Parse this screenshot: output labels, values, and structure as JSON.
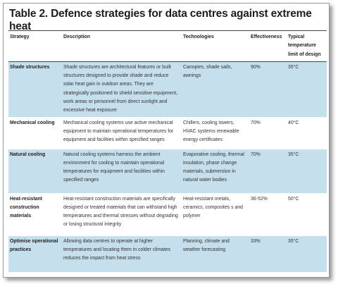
{
  "title": "Table 2. Defence strategies for data centres against extreme heat",
  "table": {
    "headers": [
      "Strategy",
      "Description",
      "Technologies",
      "Effectiveness",
      "Typical temperature limit of design"
    ],
    "rows": [
      [
        "Shade structures",
        "Shade structures are architectural features or built structures designed to provide shade and reduce solar heat gain in outdoor areas. They are strategically positioned to shield sensitive equipment, work areas or personnel from direct sunlight and excessive heat exposure",
        "Canopies, shade sails, awnings",
        "90%",
        "35°C"
      ],
      [
        "Mechanical cooling",
        "Mechanical cooling systems use active mechanical equipment to maintain operational temperatures for equipment and facilities within specified ranges",
        "Chillers, cooling towers, HVAC systems renewable energy certificates",
        "70%",
        "40°C"
      ],
      [
        "Natural cooling",
        "Natural cooling systems harness the ambient environment for cooling to maintain operational temperatures for equipment and facilities within specified ranges",
        "Evaporative cooling, thermal insulation, phase change materials, submersion in natural water bodies",
        "70%",
        "35°C"
      ],
      [
        "Heat-resistant construction materials",
        "Heat-resistant construction materials are specifically designed or treated materials that can withstand high temperatures and thermal stresses without degrading or losing structural integrity",
        "Heat-resistant metals, ceramics, composites s and polymer",
        "36-52%",
        "50°C"
      ],
      [
        "Optimise operational practices",
        "Allowing data centres to operate at higher temperatures and locating them in colder climates reduces the impact from heat stress",
        "Planning, climate and weather forecasting",
        "33%",
        "35°C"
      ]
    ]
  }
}
